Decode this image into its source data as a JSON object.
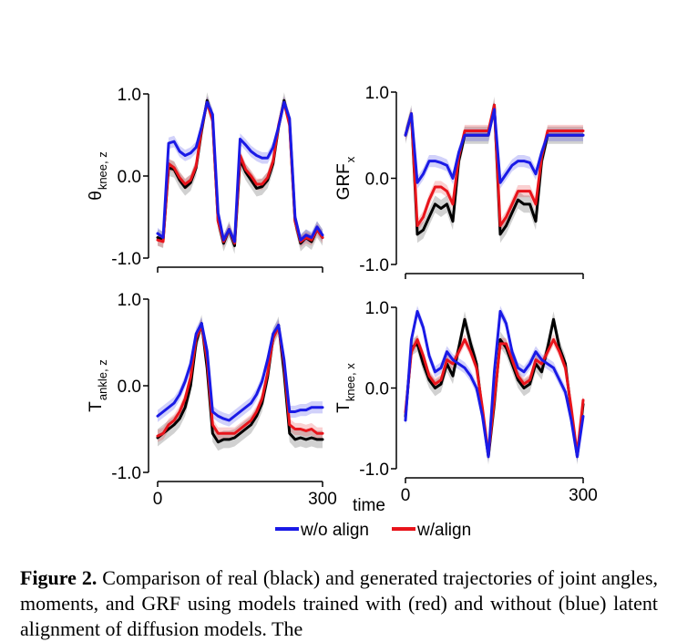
{
  "colors": {
    "real": "#000000",
    "with_align": "#e8141b",
    "without_align": "#1a1ae6"
  },
  "xlabel": "time",
  "x_ticks": [
    "0",
    "300"
  ],
  "legend": {
    "without_align": "w/o align",
    "with_align": "w/align"
  },
  "caption": {
    "label": "Figure 2.",
    "text": "Comparison of real (black) and generated trajectories of joint angles, moments, and GRF using models trained with (red) and without (blue) latent alignment of diffusion models. The"
  },
  "chart_data": [
    {
      "type": "line",
      "ylabel": {
        "main": "θ",
        "sub": "knee, z"
      },
      "y_ticks": [
        "1.0",
        "0.0",
        "-1.0"
      ],
      "ylim": [
        -1.0,
        1.0
      ],
      "xlim": [
        0,
        300
      ],
      "x": [
        0,
        10,
        20,
        30,
        40,
        50,
        60,
        70,
        80,
        90,
        100,
        110,
        120,
        130,
        140,
        150,
        160,
        170,
        180,
        190,
        200,
        210,
        220,
        230,
        240,
        250,
        260,
        270,
        280,
        290,
        300
      ],
      "series": [
        {
          "key": "real",
          "values": [
            -0.75,
            -0.78,
            0.1,
            0.08,
            -0.05,
            -0.14,
            -0.08,
            0.1,
            0.55,
            0.92,
            0.7,
            -0.55,
            -0.82,
            -0.65,
            -0.85,
            0.2,
            0.05,
            -0.05,
            -0.15,
            -0.13,
            -0.05,
            0.15,
            0.6,
            0.92,
            0.65,
            -0.55,
            -0.82,
            -0.75,
            -0.8,
            -0.65,
            -0.75
          ]
        },
        {
          "key": "with_align",
          "values": [
            -0.78,
            -0.8,
            0.15,
            0.1,
            -0.02,
            -0.1,
            -0.05,
            0.12,
            0.58,
            0.9,
            0.68,
            -0.55,
            -0.8,
            -0.65,
            -0.82,
            0.25,
            0.08,
            0.0,
            -0.1,
            -0.1,
            -0.02,
            0.18,
            0.62,
            0.9,
            0.62,
            -0.55,
            -0.8,
            -0.75,
            -0.78,
            -0.65,
            -0.75
          ]
        },
        {
          "key": "without_align",
          "values": [
            -0.7,
            -0.75,
            0.4,
            0.42,
            0.3,
            0.25,
            0.28,
            0.35,
            0.6,
            0.9,
            0.75,
            -0.45,
            -0.78,
            -0.65,
            -0.8,
            0.45,
            0.38,
            0.3,
            0.25,
            0.22,
            0.22,
            0.35,
            0.6,
            0.9,
            0.7,
            -0.5,
            -0.78,
            -0.72,
            -0.75,
            -0.62,
            -0.72
          ]
        }
      ]
    },
    {
      "type": "line",
      "ylabel": {
        "main": "GRF",
        "sub": "x"
      },
      "y_ticks": [
        "1.0",
        "0.0",
        "-1.0"
      ],
      "ylim": [
        -1.0,
        1.0
      ],
      "xlim": [
        0,
        300
      ],
      "x": [
        0,
        10,
        20,
        30,
        40,
        50,
        60,
        70,
        80,
        90,
        100,
        110,
        120,
        130,
        140,
        150,
        160,
        170,
        180,
        190,
        200,
        210,
        220,
        230,
        240,
        250,
        260,
        270,
        280,
        290,
        300
      ],
      "series": [
        {
          "key": "real",
          "values": [
            0.5,
            0.75,
            -0.65,
            -0.6,
            -0.45,
            -0.3,
            -0.35,
            -0.3,
            -0.5,
            0.2,
            0.5,
            0.5,
            0.5,
            0.5,
            0.5,
            0.85,
            -0.65,
            -0.55,
            -0.4,
            -0.25,
            -0.3,
            -0.3,
            -0.5,
            0.2,
            0.5,
            0.5,
            0.5,
            0.5,
            0.5,
            0.5,
            0.5
          ]
        },
        {
          "key": "with_align",
          "values": [
            0.5,
            0.75,
            -0.55,
            -0.45,
            -0.25,
            -0.1,
            -0.1,
            -0.15,
            -0.3,
            0.25,
            0.55,
            0.55,
            0.55,
            0.55,
            0.55,
            0.85,
            -0.55,
            -0.45,
            -0.3,
            -0.15,
            -0.15,
            -0.15,
            -0.3,
            0.25,
            0.55,
            0.55,
            0.55,
            0.55,
            0.55,
            0.55,
            0.55
          ]
        },
        {
          "key": "without_align",
          "values": [
            0.5,
            0.75,
            -0.05,
            0.05,
            0.2,
            0.2,
            0.18,
            0.15,
            0.0,
            0.3,
            0.5,
            0.5,
            0.5,
            0.5,
            0.5,
            0.8,
            -0.05,
            0.05,
            0.15,
            0.2,
            0.2,
            0.18,
            0.05,
            0.3,
            0.5,
            0.5,
            0.5,
            0.5,
            0.5,
            0.5,
            0.5
          ]
        }
      ]
    },
    {
      "type": "line",
      "ylabel": {
        "main": "T",
        "sub": "ankle, z"
      },
      "y_ticks": [
        "1.0",
        "0.0",
        "-1.0"
      ],
      "ylim": [
        -1.0,
        1.0
      ],
      "xlim": [
        0,
        300
      ],
      "x": [
        0,
        10,
        20,
        30,
        40,
        50,
        60,
        70,
        80,
        90,
        100,
        110,
        120,
        130,
        140,
        150,
        160,
        170,
        180,
        190,
        200,
        210,
        220,
        230,
        240,
        250,
        260,
        270,
        280,
        290,
        300
      ],
      "series": [
        {
          "key": "real",
          "values": [
            -0.6,
            -0.55,
            -0.5,
            -0.45,
            -0.38,
            -0.25,
            0.0,
            0.5,
            0.72,
            0.2,
            -0.55,
            -0.65,
            -0.62,
            -0.62,
            -0.6,
            -0.55,
            -0.5,
            -0.45,
            -0.35,
            -0.2,
            0.1,
            0.55,
            0.7,
            0.15,
            -0.55,
            -0.62,
            -0.6,
            -0.62,
            -0.6,
            -0.62,
            -0.62
          ]
        },
        {
          "key": "with_align",
          "values": [
            -0.58,
            -0.55,
            -0.45,
            -0.4,
            -0.3,
            -0.15,
            0.1,
            0.55,
            0.7,
            0.3,
            -0.45,
            -0.55,
            -0.55,
            -0.55,
            -0.55,
            -0.5,
            -0.45,
            -0.4,
            -0.3,
            -0.15,
            0.15,
            0.55,
            0.68,
            0.25,
            -0.45,
            -0.5,
            -0.5,
            -0.52,
            -0.5,
            -0.55,
            -0.55
          ]
        },
        {
          "key": "without_align",
          "values": [
            -0.35,
            -0.3,
            -0.25,
            -0.2,
            -0.1,
            0.05,
            0.25,
            0.6,
            0.72,
            0.4,
            -0.3,
            -0.35,
            -0.38,
            -0.4,
            -0.35,
            -0.3,
            -0.25,
            -0.2,
            -0.1,
            0.05,
            0.3,
            0.6,
            0.7,
            0.3,
            -0.3,
            -0.3,
            -0.28,
            -0.28,
            -0.25,
            -0.25,
            -0.25
          ]
        }
      ]
    },
    {
      "type": "line",
      "ylabel": {
        "main": "T",
        "sub": "knee, x"
      },
      "y_ticks": [
        "1.0",
        "0.0",
        "-1.0"
      ],
      "ylim": [
        -1.0,
        1.0
      ],
      "xlim": [
        0,
        300
      ],
      "x": [
        0,
        10,
        20,
        30,
        40,
        50,
        60,
        70,
        80,
        90,
        100,
        110,
        120,
        130,
        140,
        150,
        160,
        170,
        180,
        190,
        200,
        210,
        220,
        230,
        240,
        250,
        260,
        270,
        280,
        290,
        300
      ],
      "series": [
        {
          "key": "real",
          "values": [
            -0.35,
            0.5,
            0.55,
            0.3,
            0.1,
            0.0,
            0.05,
            0.3,
            0.15,
            0.5,
            0.85,
            0.55,
            0.3,
            -0.3,
            -0.85,
            -0.2,
            0.6,
            0.5,
            0.3,
            0.1,
            0.0,
            0.05,
            0.3,
            0.2,
            0.5,
            0.85,
            0.5,
            0.3,
            -0.3,
            -0.85,
            -0.2
          ]
        },
        {
          "key": "with_align",
          "values": [
            -0.3,
            0.45,
            0.6,
            0.4,
            0.15,
            0.05,
            0.1,
            0.35,
            0.3,
            0.45,
            0.6,
            0.45,
            0.25,
            -0.25,
            -0.82,
            -0.15,
            0.55,
            0.55,
            0.35,
            0.15,
            0.05,
            0.1,
            0.35,
            0.3,
            0.45,
            0.6,
            0.45,
            0.25,
            -0.25,
            -0.82,
            -0.15
          ]
        },
        {
          "key": "without_align",
          "values": [
            -0.4,
            0.6,
            0.95,
            0.75,
            0.4,
            0.2,
            0.25,
            0.45,
            0.35,
            0.3,
            0.25,
            0.15,
            0.0,
            -0.35,
            -0.85,
            0.2,
            0.95,
            0.8,
            0.45,
            0.25,
            0.2,
            0.3,
            0.45,
            0.35,
            0.3,
            0.25,
            0.1,
            -0.05,
            -0.4,
            -0.85,
            -0.35
          ]
        }
      ]
    }
  ]
}
